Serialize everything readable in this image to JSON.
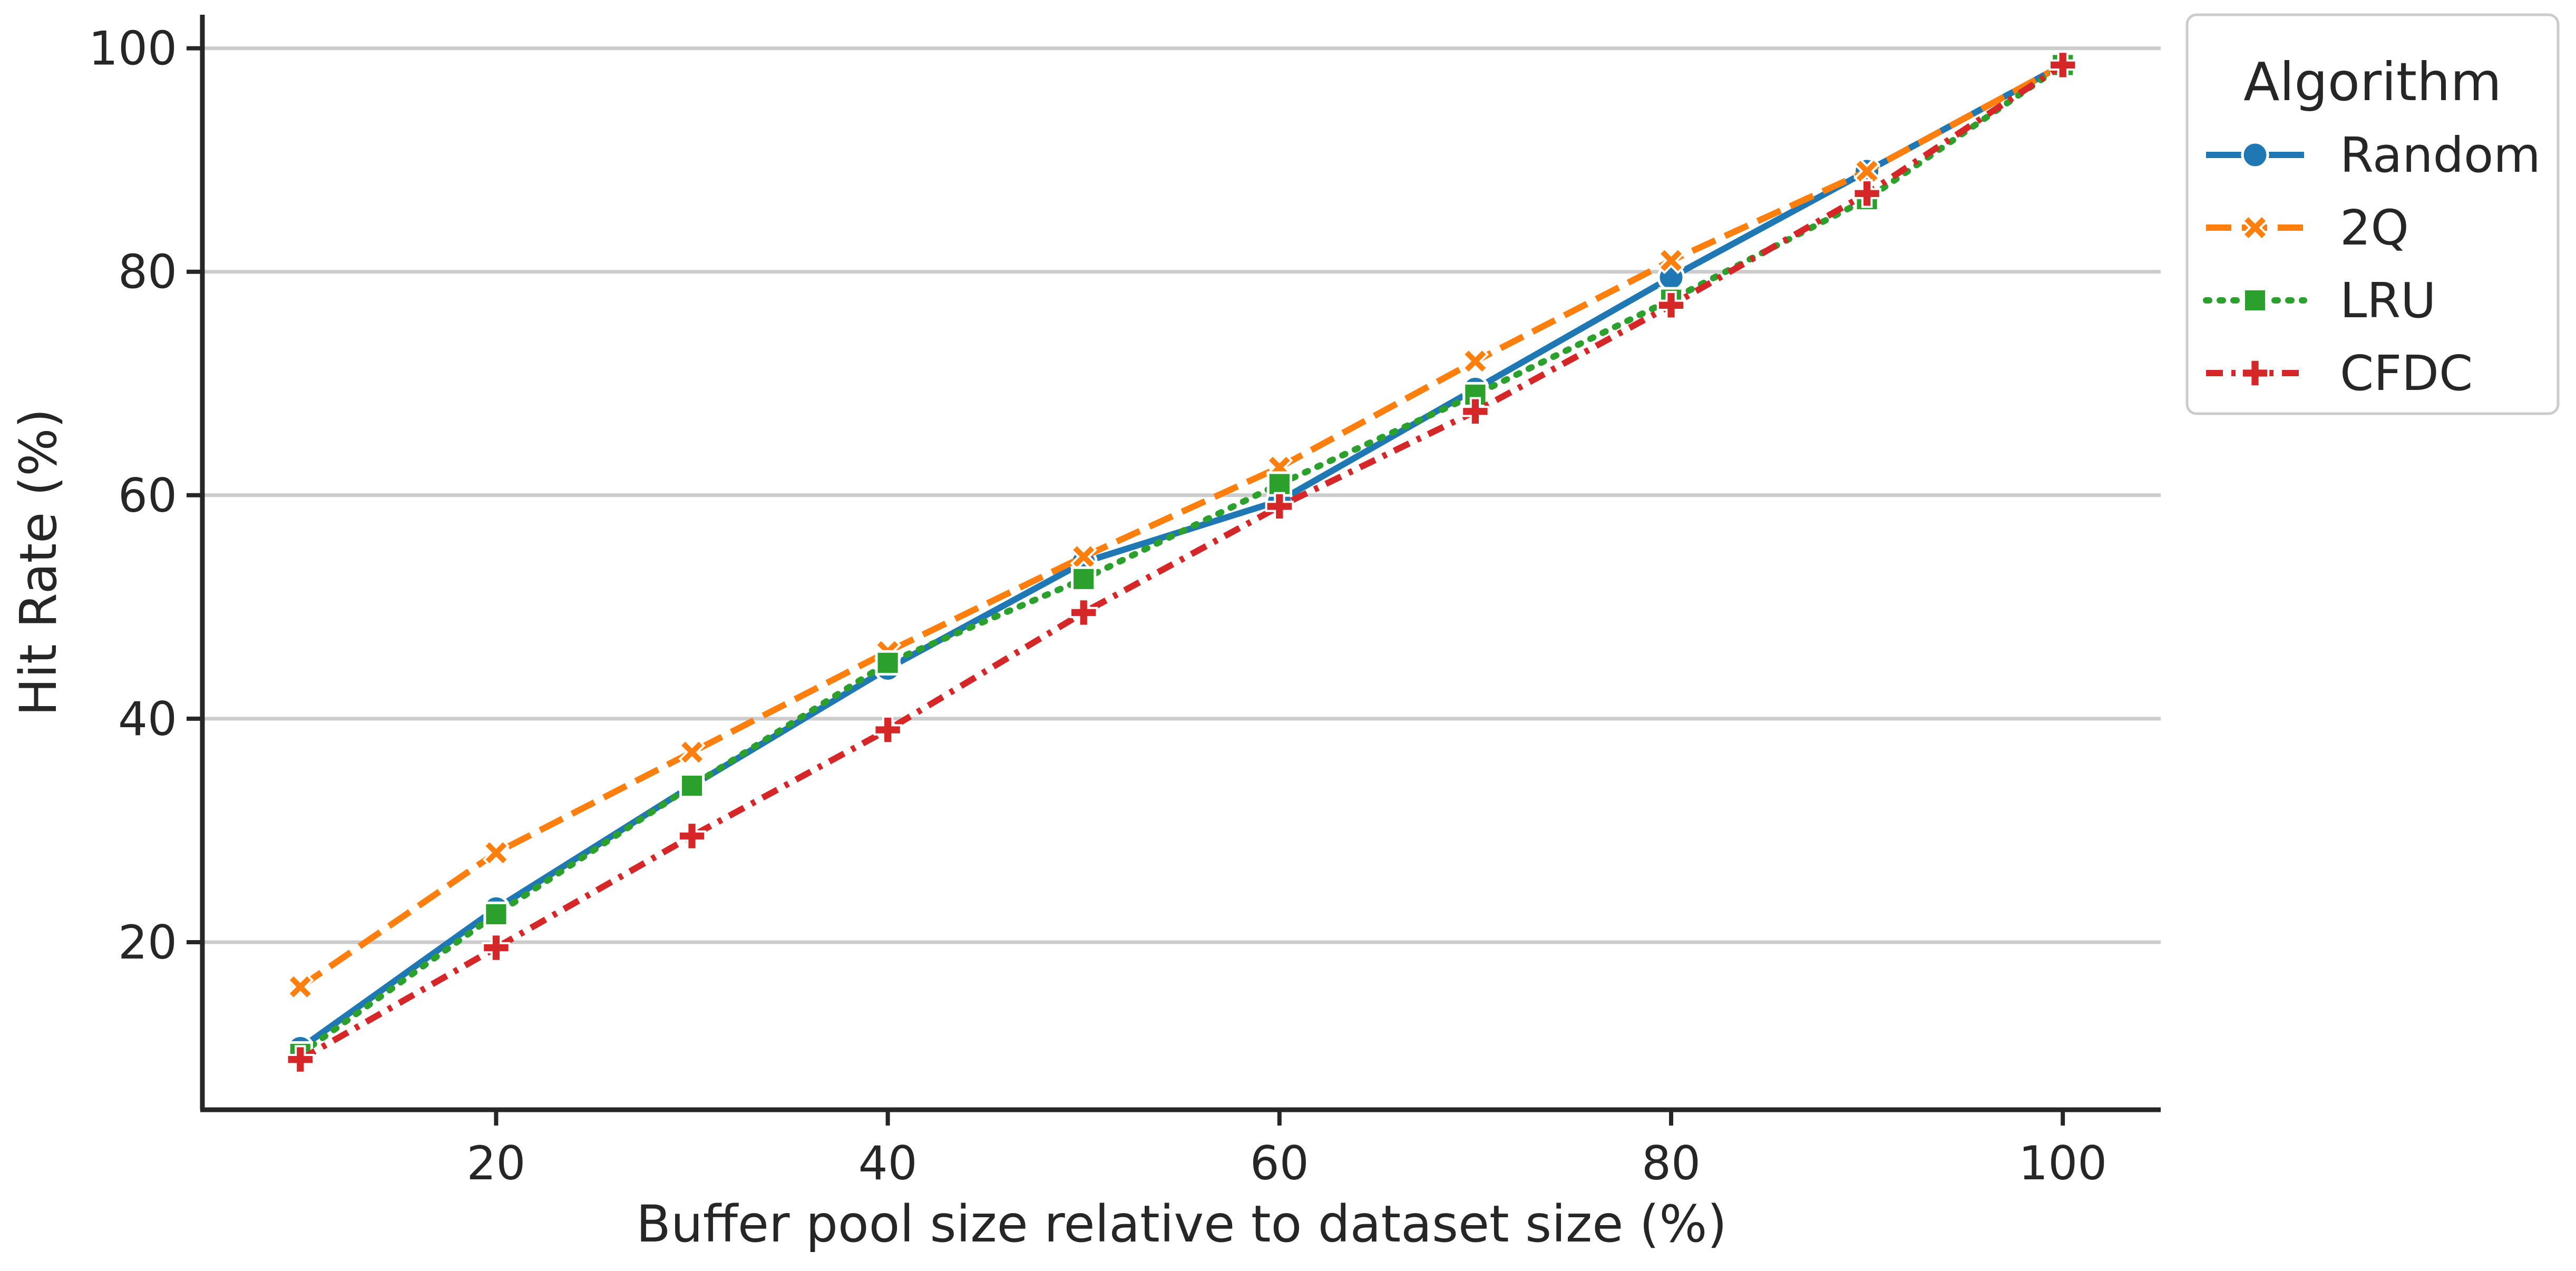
{
  "chart_data": {
    "type": "line",
    "xlabel": "Buffer pool size relative to dataset size (%)",
    "ylabel": "Hit Rate (%)",
    "xlim": [
      5,
      105
    ],
    "ylim": [
      5,
      103
    ],
    "x_ticks": [
      20,
      40,
      60,
      80,
      100
    ],
    "y_ticks": [
      20,
      40,
      60,
      80,
      100
    ],
    "x": [
      10,
      20,
      30,
      40,
      50,
      60,
      70,
      80,
      90,
      100
    ],
    "grid": "horizontal",
    "legend": {
      "title": "Algorithm",
      "placement": "outside-top-right"
    },
    "series": [
      {
        "name": "Random",
        "color": "#1f77b4",
        "dash": "solid",
        "marker": "circle",
        "values": [
          10.5,
          23.0,
          34.0,
          44.5,
          54.0,
          59.5,
          69.5,
          79.5,
          89.0,
          98.5
        ]
      },
      {
        "name": "2Q",
        "color": "#ff7f0e",
        "dash": "dashed",
        "marker": "x",
        "values": [
          16.0,
          28.0,
          37.0,
          46.0,
          54.5,
          62.5,
          72.0,
          81.0,
          89.0,
          98.5
        ]
      },
      {
        "name": "LRU",
        "color": "#2ca02c",
        "dash": "dotted",
        "marker": "square",
        "values": [
          10.0,
          22.5,
          34.0,
          45.0,
          52.5,
          61.0,
          69.0,
          77.5,
          86.5,
          98.5
        ]
      },
      {
        "name": "CFDC",
        "color": "#d62728",
        "dash": "dashdot",
        "marker": "plus",
        "values": [
          9.5,
          19.5,
          29.5,
          39.0,
          49.5,
          59.0,
          67.5,
          77.0,
          87.0,
          98.5
        ]
      }
    ]
  }
}
